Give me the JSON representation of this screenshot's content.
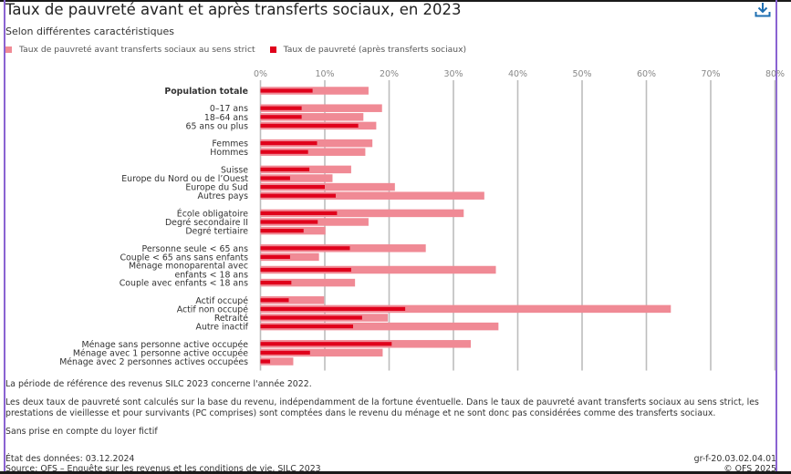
{
  "header": {
    "title": "Taux de pauvreté avant et après transferts sociaux, en 2023",
    "subtitle": "Selon différentes caractéristiques",
    "download_icon": "download-icon"
  },
  "colors": {
    "before": "#f08a95",
    "after": "#e0001b",
    "grid": "#bdbdbd",
    "frame": "#8a63d2",
    "download": "#1f6fb2"
  },
  "chart_data": {
    "type": "bar",
    "orientation": "horizontal",
    "title": "Taux de pauvreté avant et après transferts sociaux, en 2023",
    "subtitle": "Selon différentes caractéristiques",
    "xlabel": "",
    "ylabel": "",
    "xlim": [
      0,
      80
    ],
    "xticks": [
      "0%",
      "10%",
      "20%",
      "30%",
      "40%",
      "50%",
      "60%",
      "70%",
      "80%"
    ],
    "grid": true,
    "legend_position": "top-left",
    "legend": [
      "Taux de pauvreté avant transferts sociaux au sens strict",
      "Taux de pauvreté (après transferts sociaux)"
    ],
    "groups": [
      {
        "categories": [
          {
            "label": "Population totale",
            "bold": true
          }
        ]
      },
      {
        "categories": [
          {
            "label": "0–17 ans"
          },
          {
            "label": "18–64 ans"
          },
          {
            "label": "65 ans ou plus"
          }
        ]
      },
      {
        "categories": [
          {
            "label": "Femmes"
          },
          {
            "label": "Hommes"
          }
        ]
      },
      {
        "categories": [
          {
            "label": "Suisse"
          },
          {
            "label": "Europe du Nord ou de l’Ouest"
          },
          {
            "label": "Europe du Sud"
          },
          {
            "label": "Autres pays"
          }
        ]
      },
      {
        "categories": [
          {
            "label": "École obligatoire"
          },
          {
            "label": "Degré secondaire II"
          },
          {
            "label": "Degré tertiaire"
          }
        ]
      },
      {
        "categories": [
          {
            "label": "Personne seule < 65 ans"
          },
          {
            "label": "Couple < 65 ans sans enfants"
          },
          {
            "label": "Ménage monoparental avec|enfants < 18 ans"
          },
          {
            "label": "Couple avec enfants < 18 ans"
          }
        ]
      },
      {
        "categories": [
          {
            "label": "Actif occupé"
          },
          {
            "label": "Actif non occupé"
          },
          {
            "label": "Retraité"
          },
          {
            "label": "Autre inactif"
          }
        ]
      },
      {
        "categories": [
          {
            "label": "Ménage sans personne active occupée"
          },
          {
            "label": "Ménage avec 1 personne active occupée"
          },
          {
            "label": "Ménage avec 2 personnes actives occupées"
          }
        ]
      }
    ],
    "series": [
      {
        "name": "Taux de pauvreté avant transferts sociaux au sens strict",
        "values": [
          16.8,
          18.9,
          16.0,
          18.0,
          17.4,
          16.3,
          14.1,
          11.2,
          20.9,
          34.8,
          31.6,
          16.8,
          10.1,
          25.7,
          9.1,
          36.6,
          14.7,
          9.9,
          63.8,
          19.8,
          37.0,
          32.7,
          19.0,
          5.1
        ]
      },
      {
        "name": "Taux de pauvreté (après transferts sociaux)",
        "values": [
          8.1,
          6.4,
          6.4,
          15.2,
          8.8,
          7.4,
          7.6,
          4.6,
          10.0,
          11.7,
          11.9,
          8.9,
          6.7,
          13.9,
          4.6,
          14.1,
          4.8,
          4.4,
          22.5,
          15.8,
          14.4,
          20.4,
          7.7,
          1.5
        ]
      }
    ]
  },
  "notes": [
    "La période de référence des revenus SILC 2023 concerne l'année 2022.",
    "Les deux taux de pauvreté sont calculés sur la base du revenu, indépendamment de la fortune éventuelle. Dans le taux de pauvreté avant transferts sociaux au sens strict, les prestations de vieillesse et pour survivants (PC comprises) sont comptées dans le revenu du ménage et ne sont donc pas considérées comme des transferts sociaux.",
    "Sans prise en compte du loyer fictif"
  ],
  "footer": {
    "data_state": "État des données: 03.12.2024",
    "source": "Source: OFS – Enquête sur les revenus et les conditions de vie, SILC 2023",
    "code": "gr-f-20.03.02.04.01",
    "copyright": "© OFS 2025"
  }
}
